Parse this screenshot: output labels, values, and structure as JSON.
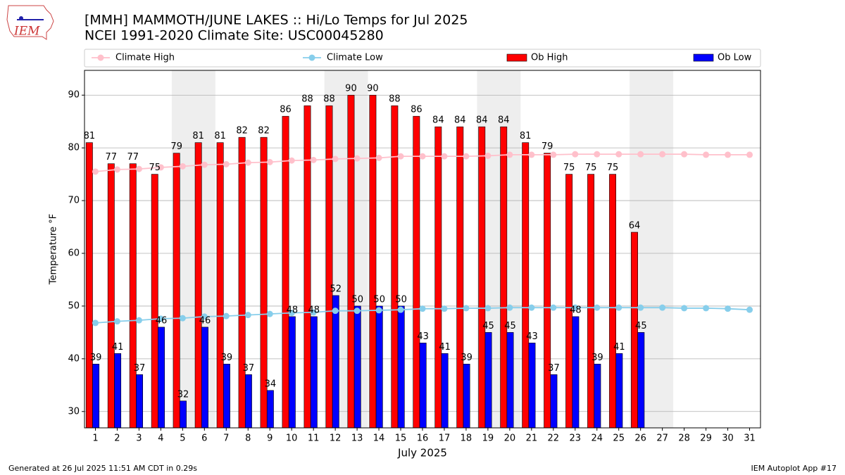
{
  "chart_data": {
    "type": "bar_line",
    "title": "[MMH] MAMMOTH/JUNE LAKES :: Hi/Lo Temps for Jul 2025",
    "subtitle": "NCEI 1991-2020 Climate Site: USC00045280",
    "logo_text": "IEM",
    "x_label": "July 2025",
    "y_label": "Temperature °F",
    "footer_left": "Generated at 26 Jul 2025 11:51 AM CDT in 0.29s",
    "footer_right": "IEM Autoplot App #17",
    "x": [
      1,
      2,
      3,
      4,
      5,
      6,
      7,
      8,
      9,
      10,
      11,
      12,
      13,
      14,
      15,
      16,
      17,
      18,
      19,
      20,
      21,
      22,
      23,
      24,
      25,
      26,
      27,
      28,
      29,
      30,
      31
    ],
    "xlim": [
      0.5,
      31.5
    ],
    "xticks": [
      1,
      2,
      3,
      4,
      5,
      6,
      7,
      8,
      9,
      10,
      11,
      12,
      13,
      14,
      15,
      16,
      17,
      18,
      19,
      20,
      21,
      22,
      23,
      24,
      25,
      26,
      27,
      28,
      29,
      30,
      31
    ],
    "ylim": [
      26.9,
      94.7
    ],
    "yticks": [
      30,
      40,
      50,
      60,
      70,
      80,
      90
    ],
    "grid": true,
    "weekend_bands": [
      [
        4.5,
        6.5
      ],
      [
        11.5,
        13.5
      ],
      [
        18.5,
        20.5
      ],
      [
        25.5,
        27.5
      ]
    ],
    "series": [
      {
        "name": "Climate High",
        "kind": "line",
        "color": "#ffc0cb",
        "values": [
          75.5,
          75.9,
          76.0,
          76.3,
          76.5,
          76.8,
          76.9,
          77.2,
          77.3,
          77.6,
          77.7,
          77.9,
          78.0,
          78.1,
          78.4,
          78.4,
          78.4,
          78.4,
          78.5,
          78.7,
          78.7,
          78.7,
          78.8,
          78.8,
          78.8,
          78.8,
          78.8,
          78.8,
          78.7,
          78.7,
          78.7
        ]
      },
      {
        "name": "Climate Low",
        "kind": "line",
        "color": "#87ceeb",
        "values": [
          46.8,
          47.1,
          47.3,
          47.6,
          47.7,
          48.0,
          48.1,
          48.3,
          48.5,
          48.7,
          48.8,
          49.1,
          49.1,
          49.2,
          49.3,
          49.5,
          49.5,
          49.6,
          49.6,
          49.7,
          49.7,
          49.7,
          49.7,
          49.7,
          49.7,
          49.7,
          49.7,
          49.6,
          49.6,
          49.5,
          49.3
        ]
      },
      {
        "name": "Ob High",
        "kind": "bar",
        "color": "#ff0000",
        "values": [
          81,
          77,
          77,
          75,
          79,
          81,
          81,
          82,
          82,
          86,
          88,
          88,
          90,
          90,
          88,
          86,
          84,
          84,
          84,
          84,
          81,
          79,
          75,
          75,
          75,
          64,
          null,
          null,
          null,
          null,
          null
        ]
      },
      {
        "name": "Ob Low",
        "kind": "bar",
        "color": "#0000ff",
        "values": [
          39,
          41,
          37,
          46,
          32,
          46,
          39,
          37,
          34,
          48,
          48,
          52,
          50,
          50,
          50,
          43,
          41,
          39,
          45,
          45,
          43,
          37,
          48,
          39,
          41,
          45,
          null,
          null,
          null,
          null,
          null
        ]
      }
    ]
  }
}
